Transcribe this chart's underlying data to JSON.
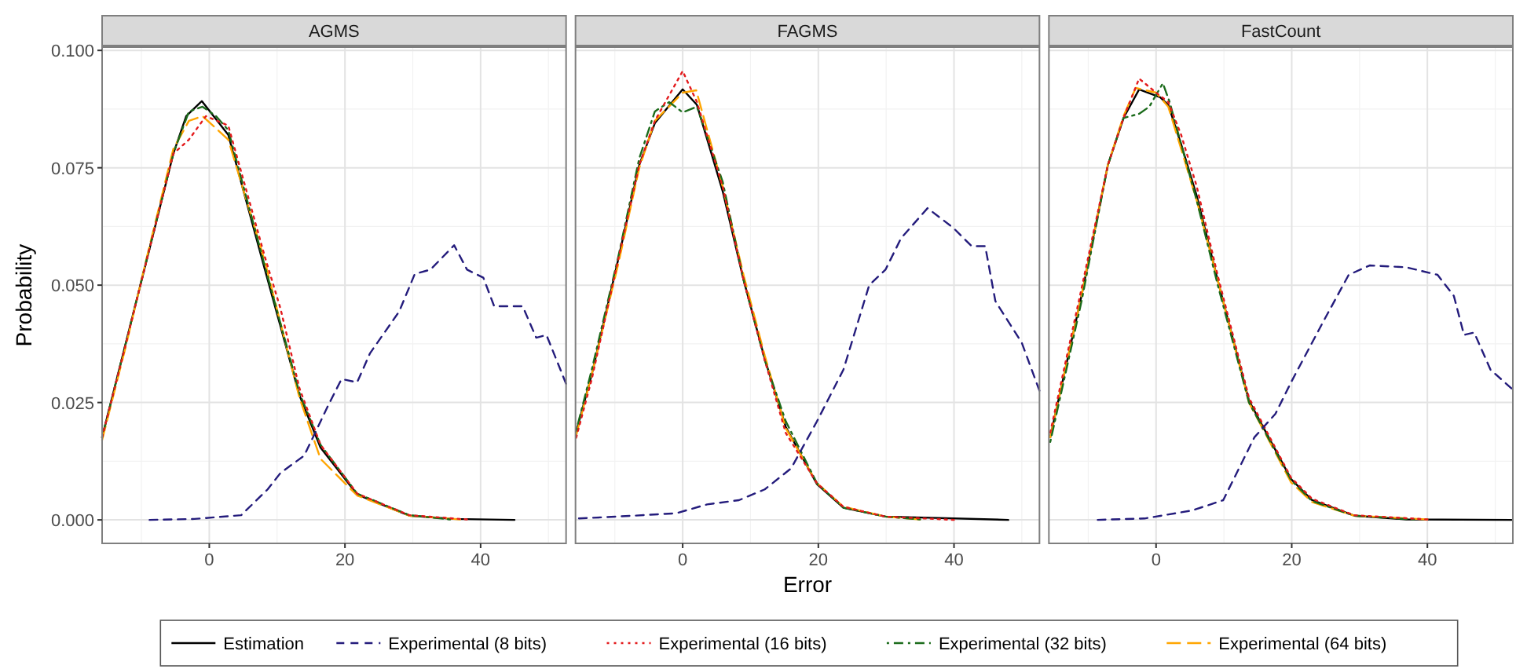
{
  "chart_data": [
    {
      "type": "line",
      "title": "AGMS",
      "ylabel": "Probability",
      "xlim": [
        -15.8,
        52.6
      ],
      "xticks": [
        0,
        20,
        40
      ],
      "ylim": [
        -0.005,
        0.1007
      ],
      "yticks": [
        {
          "value": 0,
          "label": "0.000"
        },
        {
          "value": 0.025,
          "label": "0.025"
        },
        {
          "value": 0.05,
          "label": "0.050"
        },
        {
          "value": 0.075,
          "label": "0.075"
        },
        {
          "value": 0.1,
          "label": "0.100"
        }
      ],
      "grid": true,
      "legend": "bottom",
      "series": [
        {
          "name": "Estimation",
          "color": "#000000",
          "line_style": "solid",
          "x": [
            -15.8,
            -12.3,
            -9.2,
            -5.3,
            -3.4,
            -1.1,
            2.8,
            8.2,
            13.3,
            16.4,
            21.8,
            29.5,
            36,
            45
          ],
          "values": [
            0.0176,
            0.0377,
            0.0555,
            0.078,
            0.086,
            0.0892,
            0.082,
            0.0533,
            0.0265,
            0.0154,
            0.0054,
            0.0009,
            0.0002,
            0
          ]
        },
        {
          "name": "Experimental (8 bits)",
          "color": "#241c7c",
          "line_style": "dashed",
          "x": [
            -8.8,
            -2.2,
            4.7,
            8.6,
            10.5,
            14,
            17.5,
            19.5,
            21.8,
            23.7,
            28,
            30.3,
            32.6,
            36.1,
            38,
            40.4,
            42,
            46.2,
            48.2,
            49.7,
            52.6
          ],
          "values": [
            0,
            0.0002,
            0.001,
            0.0065,
            0.01,
            0.0137,
            0.0243,
            0.03,
            0.0293,
            0.0355,
            0.0444,
            0.0524,
            0.0533,
            0.0585,
            0.0533,
            0.0516,
            0.0455,
            0.0455,
            0.0388,
            0.0394,
            0.029
          ]
        },
        {
          "name": "Experimental (16 bits)",
          "color": "#e31a1c",
          "line_style": "dotted",
          "x": [
            -15.8,
            -12.3,
            -9.2,
            -5.3,
            -3,
            -0.5,
            2.8,
            8.2,
            10.5,
            13.3,
            16.4,
            21.8,
            29.5,
            38
          ],
          "values": [
            0.0176,
            0.0375,
            0.0555,
            0.078,
            0.081,
            0.086,
            0.084,
            0.056,
            0.045,
            0.028,
            0.016,
            0.0056,
            0.001,
            0.0001
          ]
        },
        {
          "name": "Experimental (32 bits)",
          "color": "#1b6b1b",
          "line_style": "dotdash",
          "x": [
            -15.8,
            -12.3,
            -9.2,
            -5.3,
            -3,
            -1,
            1,
            2.8,
            8.2,
            13.3,
            16.4,
            21.8,
            29.5,
            35.5
          ],
          "values": [
            0.0176,
            0.0377,
            0.0556,
            0.078,
            0.087,
            0.088,
            0.086,
            0.083,
            0.054,
            0.027,
            0.016,
            0.0056,
            0.001,
            0.0001
          ]
        },
        {
          "name": "Experimental (64 bits)",
          "color": "#ffa500",
          "line_style": "longdash",
          "x": [
            -15.8,
            -12.3,
            -9.2,
            -5.3,
            -3,
            -1,
            2.8,
            8.2,
            13.3,
            16.4,
            21.8,
            29.5,
            37
          ],
          "values": [
            0.017,
            0.037,
            0.056,
            0.079,
            0.085,
            0.086,
            0.081,
            0.055,
            0.026,
            0.013,
            0.0052,
            0.0009,
            0.0001
          ]
        }
      ]
    },
    {
      "type": "line",
      "title": "FAGMS",
      "xlabel": "Error",
      "xlim": [
        -15.8,
        52.6
      ],
      "xticks": [
        0,
        20,
        40
      ],
      "ylim": [
        -0.005,
        0.1007
      ],
      "yticks": [
        0,
        0.025,
        0.05,
        0.075,
        0.1
      ],
      "tick_labels": "x",
      "grid": true,
      "series": [
        {
          "color": "#000000",
          "line_style": "solid",
          "x": [
            -15.7,
            -13.4,
            -9.5,
            -6.4,
            -4.1,
            0,
            2.1,
            5.9,
            9,
            12.1,
            15.2,
            19.8,
            23.7,
            29.9,
            48
          ],
          "values": [
            0.0187,
            0.031,
            0.0555,
            0.0756,
            0.0845,
            0.0917,
            0.0884,
            0.07,
            0.051,
            0.0343,
            0.0198,
            0.0076,
            0.0026,
            0.0007,
            0
          ]
        },
        {
          "color": "#241c7c",
          "line_style": "dashed",
          "x": [
            -15.3,
            -7.2,
            -1,
            3.6,
            8.3,
            12.1,
            16,
            19.8,
            23.7,
            27.5,
            29.9,
            32.2,
            36.1,
            39.9,
            42.6,
            44.6,
            46.1,
            50,
            52.6
          ],
          "values": [
            0.0003,
            0.0009,
            0.0014,
            0.0033,
            0.0042,
            0.0065,
            0.011,
            0.021,
            0.032,
            0.05,
            0.0533,
            0.06,
            0.0664,
            0.0622,
            0.0583,
            0.0583,
            0.0466,
            0.0377,
            0.0275
          ]
        },
        {
          "color": "#e31a1c",
          "line_style": "dotted",
          "x": [
            -15.7,
            -13.4,
            -9.5,
            -6.4,
            -4.1,
            -1,
            0,
            2.1,
            5.9,
            9,
            12.1,
            15.2,
            19.8,
            23.7,
            29.9,
            40
          ],
          "values": [
            0.0175,
            0.03,
            0.0555,
            0.0756,
            0.085,
            0.093,
            0.0956,
            0.089,
            0.071,
            0.051,
            0.034,
            0.0185,
            0.0078,
            0.0028,
            0.0007,
            0
          ]
        },
        {
          "color": "#1b6b1b",
          "line_style": "dotdash",
          "x": [
            -15.7,
            -13.4,
            -9.5,
            -6.4,
            -4.1,
            -2,
            0,
            2.1,
            5.9,
            9,
            12.1,
            15.2,
            19.8,
            23.7,
            29.9,
            35
          ],
          "values": [
            0.019,
            0.032,
            0.056,
            0.077,
            0.087,
            0.089,
            0.0868,
            0.088,
            0.072,
            0.051,
            0.034,
            0.021,
            0.0078,
            0.0026,
            0.0007,
            0.0001
          ]
        },
        {
          "color": "#ffa500",
          "line_style": "longdash",
          "x": [
            -15.7,
            -13.4,
            -9.5,
            -6.4,
            -4.1,
            0,
            2,
            5.9,
            9,
            12.1,
            15.2,
            19.8,
            23.7,
            29.9,
            35
          ],
          "values": [
            0.018,
            0.031,
            0.0545,
            0.075,
            0.085,
            0.091,
            0.0915,
            0.071,
            0.052,
            0.035,
            0.0195,
            0.0078,
            0.0028,
            0.0007,
            0.0001
          ]
        }
      ]
    },
    {
      "type": "line",
      "title": "FastCount",
      "xlim": [
        -15.8,
        52.6
      ],
      "xticks": [
        0,
        20,
        40
      ],
      "ylim": [
        -0.005,
        0.1007
      ],
      "yticks": [
        0,
        0.025,
        0.05,
        0.075,
        0.1
      ],
      "tick_labels": "x",
      "grid": true,
      "series": [
        {
          "color": "#000000",
          "line_style": "solid",
          "x": [
            -15.6,
            -11,
            -7.1,
            -4.8,
            -2.5,
            0.6,
            1.8,
            3.7,
            6,
            9.1,
            13.7,
            19.9,
            23,
            29.2,
            36.9,
            52.4
          ],
          "values": [
            0.0176,
            0.0477,
            0.0756,
            0.0856,
            0.0917,
            0.09,
            0.0884,
            0.08,
            0.069,
            0.051,
            0.0254,
            0.0087,
            0.0042,
            0.0009,
            0.0001,
            0
          ]
        },
        {
          "color": "#241c7c",
          "line_style": "dashed",
          "x": [
            -8.6,
            -1.7,
            5.3,
            9.9,
            14.5,
            17.6,
            19.9,
            24.6,
            28.4,
            31.5,
            36.9,
            41.5,
            43.9,
            45.4,
            46.9,
            49.3,
            52.4
          ],
          "values": [
            0,
            0.0003,
            0.002,
            0.0042,
            0.0176,
            0.0226,
            0.0293,
            0.0421,
            0.0522,
            0.0542,
            0.0538,
            0.0522,
            0.0477,
            0.0394,
            0.0399,
            0.032,
            0.028
          ]
        },
        {
          "color": "#e31a1c",
          "line_style": "dotted",
          "x": [
            -15.6,
            -11,
            -7.1,
            -4.8,
            -2.5,
            0,
            1.8,
            3.7,
            6,
            9.1,
            13.7,
            19.9,
            23,
            29.2,
            40
          ],
          "values": [
            0.0186,
            0.0492,
            0.0756,
            0.0856,
            0.094,
            0.091,
            0.089,
            0.082,
            0.071,
            0.052,
            0.026,
            0.009,
            0.0045,
            0.001,
            0.0001
          ]
        },
        {
          "color": "#1b6b1b",
          "line_style": "dotdash",
          "x": [
            -15.6,
            -11,
            -7.1,
            -4.8,
            -2.5,
            -1,
            1,
            2,
            3.7,
            6,
            9.1,
            13.7,
            19.9,
            23,
            29.2,
            38
          ],
          "values": [
            0.0166,
            0.0465,
            0.0756,
            0.0856,
            0.0865,
            0.088,
            0.093,
            0.089,
            0.08,
            0.068,
            0.05,
            0.025,
            0.0085,
            0.004,
            0.0009,
            0.0001
          ]
        },
        {
          "color": "#ffa500",
          "line_style": "longdash",
          "x": [
            -15.6,
            -11,
            -7.1,
            -4.8,
            -3,
            0,
            1.8,
            3.7,
            6,
            9.1,
            13.7,
            19.9,
            23,
            29.2,
            40
          ],
          "values": [
            0.0176,
            0.0477,
            0.0756,
            0.086,
            0.092,
            0.091,
            0.088,
            0.079,
            0.068,
            0.051,
            0.025,
            0.008,
            0.0038,
            0.0009,
            0.0001
          ]
        }
      ]
    }
  ]
}
